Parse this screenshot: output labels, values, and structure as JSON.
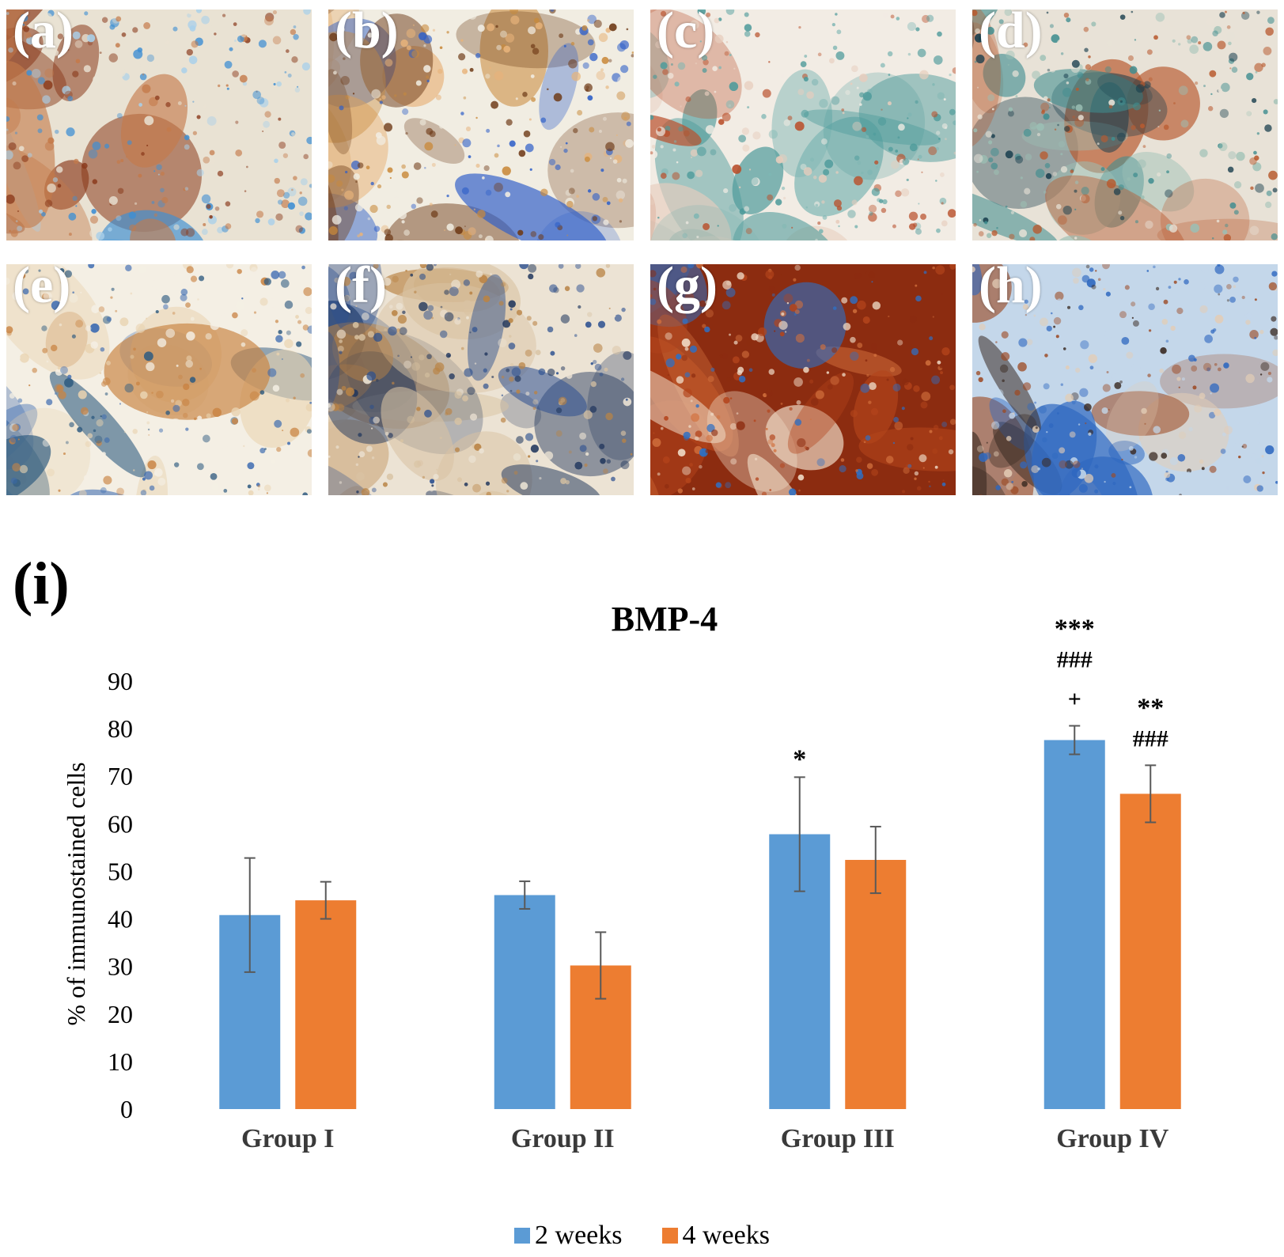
{
  "colors": {
    "series_2w": "#5b9bd5",
    "series_4w": "#ed7d31",
    "error_bar": "#595959"
  },
  "panels": [
    {
      "label": "(a)",
      "palette": [
        "#3f8fd3",
        "#a9d0ea",
        "#8a3a1c",
        "#c47a4a",
        "#e9e2d3"
      ]
    },
    {
      "label": "(b)",
      "palette": [
        "#2f5fc8",
        "#c98a3b",
        "#e7b37a",
        "#6e3a17",
        "#f1ede2"
      ]
    },
    {
      "label": "(c)",
      "palette": [
        "#4c9a9a",
        "#b9502c",
        "#e7cdbd",
        "#7eb6b3",
        "#f2ece4"
      ]
    },
    {
      "label": "(d)",
      "palette": [
        "#3f8d8f",
        "#b85a2f",
        "#143a4a",
        "#9bbfb4",
        "#e8e2d7"
      ]
    },
    {
      "label": "(e)",
      "palette": [
        "#3868b0",
        "#c98444",
        "#e9d3b0",
        "#2f5b80",
        "#f4efe4"
      ]
    },
    {
      "label": "(f)",
      "palette": [
        "#2b4f8f",
        "#b98345",
        "#d9c3a3",
        "#1f355c",
        "#ece3d4"
      ]
    },
    {
      "label": "(g)",
      "palette": [
        "#b3441b",
        "#d2703d",
        "#f0ddc9",
        "#2e6fc4",
        "#8c2c10"
      ]
    },
    {
      "label": "(h)",
      "palette": [
        "#2f68c0",
        "#9c4a24",
        "#e3cdb6",
        "#3a2a22",
        "#c4d7ea"
      ]
    }
  ],
  "chart_label": "(i)",
  "chart_data": {
    "type": "bar",
    "title": "BMP-4",
    "ylabel": "% of immunostained cells",
    "xlabel": "",
    "categories": [
      "Group I",
      "Group II",
      "Group III",
      "Group IV"
    ],
    "ylim": [
      0,
      90
    ],
    "yticks": [
      0,
      10,
      20,
      30,
      40,
      50,
      60,
      70,
      80,
      90
    ],
    "grid": false,
    "legend_position": "bottom",
    "series": [
      {
        "name": "2 weeks",
        "values": [
          40.8,
          45.0,
          57.8,
          77.6
        ],
        "errors": [
          12.0,
          2.9,
          12.0,
          3.0
        ],
        "annotations": [
          [],
          [],
          [
            "*"
          ],
          [
            "***",
            "###",
            "+"
          ]
        ]
      },
      {
        "name": "4 weeks",
        "values": [
          43.9,
          30.2,
          52.4,
          66.3
        ],
        "errors": [
          3.9,
          7.0,
          7.0,
          6.0
        ],
        "annotations": [
          [],
          [],
          [],
          [
            "**",
            "###"
          ]
        ]
      }
    ]
  }
}
